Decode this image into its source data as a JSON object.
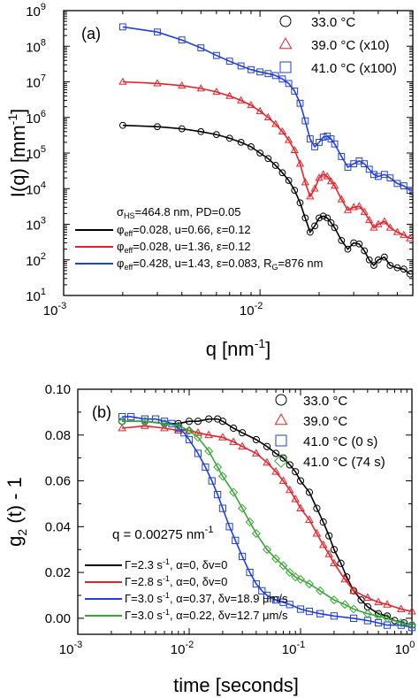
{
  "chart_data": [
    {
      "panel": "(a)",
      "type": "scatter",
      "xscale": "log",
      "yscale": "log",
      "xlim": [
        0.001,
        0.06
      ],
      "ylim": [
        10,
        1000000000
      ],
      "xlabel_main": "q [nm",
      "xlabel_sup": "-1",
      "xlabel_end": "]",
      "ylabel_main": "I(q) [mm",
      "ylabel_sup": "-1",
      "ylabel_end": "]",
      "xtick_labels": [
        {
          "value": 0.001,
          "base": "10",
          "exp": "-3"
        },
        {
          "value": 0.01,
          "base": "10",
          "exp": "-2"
        }
      ],
      "ytick_labels": [
        {
          "value": 10,
          "base": "10",
          "exp": "1"
        },
        {
          "value": 100,
          "base": "10",
          "exp": "2"
        },
        {
          "value": 1000,
          "base": "10",
          "exp": "3"
        },
        {
          "value": 10000,
          "base": "10",
          "exp": "4"
        },
        {
          "value": 100000,
          "base": "10",
          "exp": "5"
        },
        {
          "value": 1000000,
          "base": "10",
          "exp": "6"
        },
        {
          "value": 10000000,
          "base": "10",
          "exp": "7"
        },
        {
          "value": 100000000,
          "base": "10",
          "exp": "8"
        },
        {
          "value": 1000000000,
          "base": "10",
          "exp": "9"
        }
      ],
      "legend_position": "top-right",
      "series": [
        {
          "name": "33.0 °C",
          "marker": "circle",
          "color": "#000000",
          "x": [
            0.002,
            0.003,
            0.004,
            0.005,
            0.006,
            0.007,
            0.008,
            0.009,
            0.01,
            0.011,
            0.012,
            0.013,
            0.014,
            0.015,
            0.016,
            0.017,
            0.018,
            0.019,
            0.02,
            0.021,
            0.022,
            0.023,
            0.024,
            0.026,
            0.028,
            0.03,
            0.032,
            0.034,
            0.036,
            0.038,
            0.04,
            0.043,
            0.046,
            0.05,
            0.054,
            0.058
          ],
          "y": [
            600000,
            550000,
            480000,
            400000,
            330000,
            260000,
            200000,
            150000,
            100000,
            70000,
            45000,
            28000,
            17000,
            9000,
            4000,
            1500,
            600,
            900,
            1500,
            1700,
            1500,
            1100,
            800,
            350,
            200,
            300,
            280,
            180,
            100,
            70,
            100,
            120,
            70,
            60,
            55,
            40
          ]
        },
        {
          "name": "39.0 °C (x10)",
          "marker": "triangle",
          "color": "#e8202a",
          "x": [
            0.002,
            0.003,
            0.004,
            0.005,
            0.006,
            0.007,
            0.008,
            0.009,
            0.01,
            0.011,
            0.012,
            0.013,
            0.014,
            0.015,
            0.016,
            0.017,
            0.018,
            0.019,
            0.02,
            0.021,
            0.022,
            0.023,
            0.024,
            0.026,
            0.028,
            0.03,
            0.032,
            0.034,
            0.036,
            0.038,
            0.04,
            0.043,
            0.046,
            0.05,
            0.054,
            0.058
          ],
          "y": [
            10000000,
            9000000,
            7800000,
            6500000,
            5200000,
            4000000,
            3000000,
            2200000,
            1500000,
            1000000,
            650000,
            400000,
            230000,
            120000,
            50000,
            15000,
            6000,
            10000,
            20000,
            25000,
            22000,
            16000,
            12000,
            5000,
            2500,
            3000,
            3200,
            2200,
            1300,
            800,
            1000,
            1200,
            800,
            600,
            500,
            400
          ]
        },
        {
          "name": "41.0 °C (x100)",
          "marker": "square",
          "color": "#1f3fe0",
          "x": [
            0.002,
            0.003,
            0.004,
            0.005,
            0.006,
            0.007,
            0.008,
            0.009,
            0.01,
            0.011,
            0.012,
            0.013,
            0.014,
            0.015,
            0.016,
            0.017,
            0.018,
            0.019,
            0.02,
            0.021,
            0.022,
            0.023,
            0.024,
            0.026,
            0.028,
            0.03,
            0.032,
            0.034,
            0.036,
            0.038,
            0.04,
            0.043,
            0.046,
            0.05,
            0.054,
            0.058
          ],
          "y": [
            350000000,
            250000000,
            150000000,
            90000000,
            55000000,
            38000000,
            28000000,
            22000000,
            19000000,
            17000000,
            15000000,
            12000000,
            9000000,
            5500000,
            2500000,
            800000,
            250000,
            150000,
            200000,
            280000,
            300000,
            250000,
            180000,
            80000,
            40000,
            50000,
            60000,
            50000,
            35000,
            25000,
            22000,
            25000,
            20000,
            14000,
            12000,
            9000
          ]
        }
      ],
      "annotations": {
        "sigma_line": "σ|HS|=464.8 nm, PD=0.05",
        "fit_lines": [
          {
            "color": "#000000",
            "text": "φ|eff|=0.028, u=0.66, ε=0.12"
          },
          {
            "color": "#e8202a",
            "text": "φ|eff|=0.028, u=1.36, ε=0.12"
          },
          {
            "color": "#1f3fe0",
            "text": "φ|eff|=0.428, u=1.43, ε=0.083, R|G|=876 nm"
          }
        ]
      }
    },
    {
      "panel": "(b)",
      "type": "scatter",
      "xscale": "log",
      "yscale": "linear",
      "xlim": [
        0.001,
        1
      ],
      "ylim": [
        -0.007,
        0.1
      ],
      "xlabel_main": "time [seconds]",
      "ylabel_main": "g",
      "ylabel_sub": "2",
      "ylabel_end": " (t) - 1",
      "xtick_labels": [
        {
          "value": 0.001,
          "base": "10",
          "exp": "-3"
        },
        {
          "value": 0.01,
          "base": "10",
          "exp": "-2"
        },
        {
          "value": 0.1,
          "base": "10",
          "exp": "-1"
        },
        {
          "value": 1,
          "base": "10",
          "exp": "0"
        }
      ],
      "ytick_labels": [
        {
          "value": 0.0,
          "label": "0.00"
        },
        {
          "value": 0.02,
          "label": "0.02"
        },
        {
          "value": 0.04,
          "label": "0.04"
        },
        {
          "value": 0.06,
          "label": "0.06"
        },
        {
          "value": 0.08,
          "label": "0.08"
        },
        {
          "value": 0.1,
          "label": "0.10"
        }
      ],
      "legend_position": "top-right",
      "q_label": "q = 0.00275 nm",
      "q_label_sup": "-1",
      "series": [
        {
          "name": "33.0 °C",
          "marker": "circle",
          "color": "#000000",
          "x": [
            0.0025,
            0.004,
            0.006,
            0.008,
            0.01,
            0.012,
            0.015,
            0.018,
            0.02,
            0.025,
            0.03,
            0.04,
            0.05,
            0.06,
            0.07,
            0.08,
            0.09,
            0.1,
            0.12,
            0.14,
            0.16,
            0.18,
            0.2,
            0.23,
            0.26,
            0.3,
            0.35,
            0.4,
            0.5,
            0.6,
            0.7,
            0.85,
            1.0
          ],
          "y": [
            0.086,
            0.086,
            0.085,
            0.085,
            0.086,
            0.086,
            0.087,
            0.087,
            0.086,
            0.083,
            0.081,
            0.078,
            0.075,
            0.072,
            0.07,
            0.067,
            0.064,
            0.06,
            0.055,
            0.048,
            0.042,
            0.036,
            0.03,
            0.024,
            0.018,
            0.012,
            0.008,
            0.005,
            0.002,
            0.001,
            -0.001,
            -0.002,
            -0.003
          ]
        },
        {
          "name": "39.0 °C",
          "marker": "triangle",
          "color": "#e8202a",
          "x": [
            0.0025,
            0.004,
            0.006,
            0.008,
            0.01,
            0.012,
            0.015,
            0.02,
            0.025,
            0.03,
            0.04,
            0.05,
            0.06,
            0.07,
            0.08,
            0.09,
            0.1,
            0.12,
            0.14,
            0.16,
            0.18,
            0.2,
            0.25,
            0.3,
            0.4,
            0.5,
            0.6,
            0.8,
            1.0
          ],
          "y": [
            0.083,
            0.084,
            0.083,
            0.082,
            0.082,
            0.081,
            0.08,
            0.079,
            0.077,
            0.075,
            0.072,
            0.068,
            0.064,
            0.06,
            0.056,
            0.052,
            0.048,
            0.043,
            0.037,
            0.032,
            0.028,
            0.024,
            0.017,
            0.012,
            0.009,
            0.007,
            0.006,
            0.004,
            0.003
          ]
        },
        {
          "name": "41.0 °C (0 s)",
          "marker": "square",
          "color": "#1f3fe0",
          "x": [
            0.0025,
            0.003,
            0.004,
            0.005,
            0.006,
            0.007,
            0.008,
            0.009,
            0.01,
            0.012,
            0.014,
            0.016,
            0.018,
            0.02,
            0.023,
            0.026,
            0.03,
            0.035,
            0.04,
            0.045,
            0.05,
            0.06,
            0.07,
            0.08,
            0.1,
            0.12,
            0.15,
            0.2,
            0.3,
            0.4,
            0.5,
            0.6,
            0.8,
            1.0
          ],
          "y": [
            0.088,
            0.088,
            0.087,
            0.087,
            0.086,
            0.085,
            0.083,
            0.081,
            0.078,
            0.072,
            0.066,
            0.06,
            0.054,
            0.048,
            0.04,
            0.034,
            0.027,
            0.02,
            0.015,
            0.012,
            0.01,
            0.008,
            0.007,
            0.006,
            0.004,
            0.003,
            0.002,
            0.001,
            0.0,
            -0.001,
            -0.002,
            -0.003,
            -0.003,
            -0.004
          ]
        },
        {
          "name": "41.0 °C (74 s)",
          "marker": "diamond",
          "color": "#34a832",
          "x": [
            0.0025,
            0.004,
            0.006,
            0.008,
            0.01,
            0.012,
            0.015,
            0.018,
            0.02,
            0.025,
            0.03,
            0.035,
            0.04,
            0.05,
            0.06,
            0.07,
            0.08,
            0.09,
            0.1,
            0.12,
            0.15,
            0.2,
            0.25,
            0.3,
            0.4,
            0.5,
            0.6,
            0.8,
            1.0
          ],
          "y": [
            0.086,
            0.086,
            0.085,
            0.084,
            0.082,
            0.079,
            0.073,
            0.066,
            0.062,
            0.055,
            0.048,
            0.042,
            0.037,
            0.03,
            0.026,
            0.023,
            0.02,
            0.018,
            0.017,
            0.015,
            0.012,
            0.008,
            0.006,
            0.004,
            0.002,
            0.001,
            0.0,
            -0.002,
            -0.003
          ]
        }
      ],
      "annotations": {
        "fit_lines": [
          {
            "color": "#000000",
            "text": "Γ=2.3 s|-1|, α=0, δv=0"
          },
          {
            "color": "#e8202a",
            "text": "Γ=2.8 s|-1|, α=0, δv=0"
          },
          {
            "color": "#1f3fe0",
            "text": "Γ=3.0 s|-1|, α=0.37, δv=18.9 μm/s"
          },
          {
            "color": "#34a832",
            "text": "Γ=3.0 s|-1|, α=0.22, δv=12.7 μm/s"
          }
        ]
      }
    }
  ]
}
